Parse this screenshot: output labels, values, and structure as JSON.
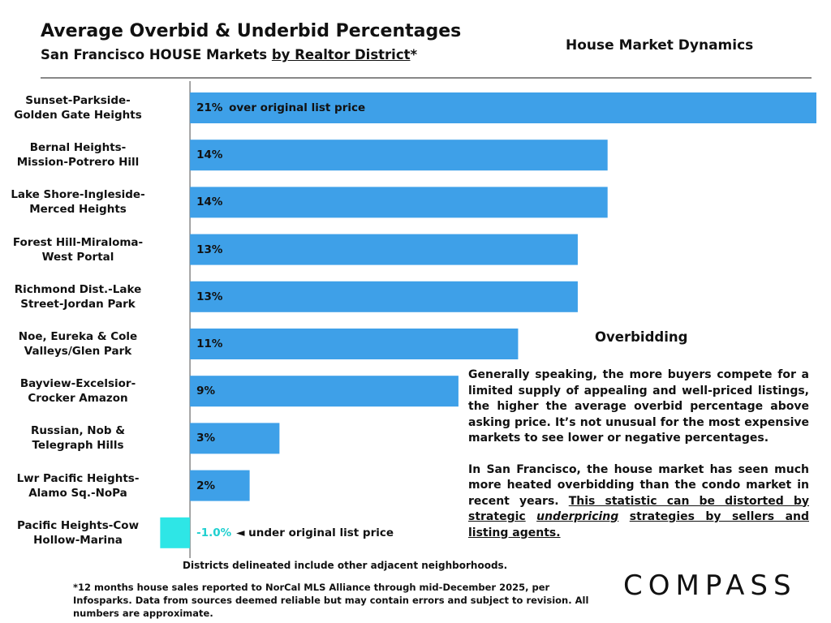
{
  "header": {
    "title": "Average Overbid & Underbid Percentages",
    "subtitle": [
      "San Francisco HOUSE Markets",
      "by Realtor District",
      "*"
    ],
    "section": "House Market Dynamics"
  },
  "chart_data": {
    "type": "bar",
    "orientation": "horizontal",
    "categories": [
      "Sunset-Parkside-\nGolden Gate Heights",
      "Bernal Heights-\nMission-Potrero Hill",
      "Lake Shore-Ingleside-\nMerced Heights",
      "Forest Hill-Miraloma-\nWest Portal",
      "Richmond Dist.-Lake\nStreet-Jordan Park",
      "Noe, Eureka & Cole\nValleys/Glen Park",
      "Bayview-Excelsior-\nCrocker Amazon",
      "Russian, Nob &\nTelegraph Hills",
      "Lwr Pacific Heights-\nAlamo Sq.-NoPa",
      "Pacific Heights-Cow\nHollow-Marina"
    ],
    "values": [
      21,
      14,
      14,
      13,
      13,
      11,
      9,
      3,
      2,
      -1.0
    ],
    "value_labels": [
      "21%",
      "14%",
      "14%",
      "13%",
      "13%",
      "11%",
      "9%",
      "3%",
      "2%",
      "-1.0%"
    ],
    "color": "#3ea0e8",
    "negative_color": "#2ee6e6",
    "xlim": [
      -1.2,
      21
    ],
    "annotations": {
      "over": "over original list price",
      "under": "◄ under original list price"
    },
    "note": "Districts delineated include other adjacent neighborhoods."
  },
  "text_panel": {
    "heading": "Overbidding",
    "paragraph_1": "Generally speaking, the more buyers compete for a limited supply of appealing and well-priced listings, the higher the average overbid percentage above asking price. It’s not unusual for the most expensive markets to see lower or negative percentages.",
    "paragraph_2": [
      "In San Francisco, the house market has seen much more heated overbidding than the condo market in recent years.",
      "This statistic can be distorted by strategic",
      "underpricing",
      "strategies by sellers and listing agents."
    ]
  },
  "footer": {
    "footnote": "*12 months house sales reported to NorCal MLS Alliance through mid-December 2025, per Infosparks. Data from sources deemed reliable but may contain errors and subject to revision. All numbers are approximate.",
    "logo": "COMPASS"
  }
}
